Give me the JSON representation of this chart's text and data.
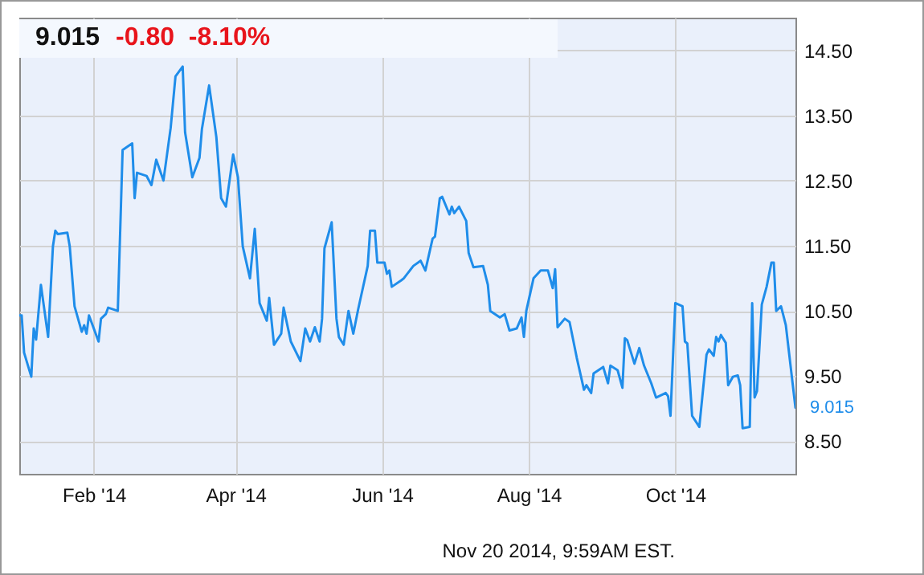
{
  "chart_data": {
    "type": "line",
    "title": "9.015",
    "subtitle": "-0.80  -8.10%",
    "x": [
      "2014-01-01",
      "2014-01-02",
      "2014-01-03",
      "2014-01-06",
      "2014-01-07",
      "2014-01-08",
      "2014-01-10",
      "2014-01-13",
      "2014-01-15",
      "2014-01-16",
      "2014-01-17",
      "2014-01-21",
      "2014-01-22",
      "2014-01-24",
      "2014-01-27",
      "2014-01-28",
      "2014-01-29",
      "2014-01-30",
      "2014-02-03",
      "2014-02-04",
      "2014-02-06",
      "2014-02-07",
      "2014-02-11",
      "2014-02-13",
      "2014-02-17",
      "2014-02-18",
      "2014-02-19",
      "2014-02-23",
      "2014-02-25",
      "2014-02-27",
      "2014-03-02",
      "2014-03-05",
      "2014-03-07",
      "2014-03-10",
      "2014-03-11",
      "2014-03-14",
      "2014-03-17",
      "2014-03-18",
      "2014-03-21",
      "2014-03-24",
      "2014-03-26",
      "2014-03-28",
      "2014-03-31",
      "2014-04-02",
      "2014-04-04",
      "2014-04-07",
      "2014-04-09",
      "2014-04-11",
      "2014-04-14",
      "2014-04-15",
      "2014-04-17",
      "2014-04-20",
      "2014-04-21",
      "2014-04-24",
      "2014-04-28",
      "2014-04-30",
      "2014-05-02",
      "2014-05-04",
      "2014-05-06",
      "2014-05-07",
      "2014-05-08",
      "2014-05-11",
      "2014-05-13",
      "2014-05-14",
      "2014-05-16",
      "2014-05-18",
      "2014-05-20",
      "2014-05-22",
      "2014-05-26",
      "2014-05-27",
      "2014-05-29",
      "2014-05-30",
      "2014-06-02",
      "2014-06-03",
      "2014-06-04",
      "2014-06-05",
      "2014-06-09",
      "2014-06-10",
      "2014-06-14",
      "2014-06-17",
      "2014-06-19",
      "2014-06-22",
      "2014-06-23",
      "2014-06-25",
      "2014-06-26",
      "2014-06-29",
      "2014-06-30",
      "2014-07-01",
      "2014-07-03",
      "2014-07-06",
      "2014-07-07",
      "2014-07-09",
      "2014-07-13",
      "2014-07-15",
      "2014-07-16",
      "2014-07-20",
      "2014-07-22",
      "2014-07-24",
      "2014-07-27",
      "2014-07-29",
      "2014-07-30",
      "2014-07-31",
      "2014-08-03",
      "2014-08-06",
      "2014-08-09",
      "2014-08-11",
      "2014-08-12",
      "2014-08-13",
      "2014-08-16",
      "2014-08-18",
      "2014-08-21",
      "2014-08-24",
      "2014-08-25",
      "2014-08-27",
      "2014-08-28",
      "2014-09-01",
      "2014-09-03",
      "2014-09-04",
      "2014-09-07",
      "2014-09-09",
      "2014-09-10",
      "2014-09-11",
      "2014-09-14",
      "2014-09-16",
      "2014-09-18",
      "2014-09-21",
      "2014-09-23",
      "2014-09-27",
      "2014-09-28",
      "2014-09-29",
      "2014-10-01",
      "2014-10-04",
      "2014-10-05",
      "2014-10-06",
      "2014-10-08",
      "2014-10-11",
      "2014-10-14",
      "2014-10-15",
      "2014-10-17",
      "2014-10-18",
      "2014-10-19",
      "2014-10-20",
      "2014-10-22",
      "2014-10-23",
      "2014-10-25",
      "2014-10-27",
      "2014-10-28",
      "2014-10-29",
      "2014-11-01",
      "2014-11-02",
      "2014-11-03",
      "2014-11-04",
      "2014-11-06",
      "2014-11-08",
      "2014-11-10",
      "2014-11-11",
      "2014-11-12",
      "2014-11-14",
      "2014-11-16",
      "2014-11-20"
    ],
    "values": [
      10.43,
      10.43,
      9.86,
      9.49,
      10.23,
      10.06,
      10.9,
      10.1,
      11.49,
      11.73,
      11.68,
      11.7,
      11.49,
      10.57,
      10.18,
      10.28,
      10.15,
      10.43,
      10.03,
      10.38,
      10.45,
      10.55,
      10.5,
      12.97,
      13.07,
      12.23,
      12.62,
      12.57,
      12.43,
      12.82,
      12.5,
      13.31,
      14.1,
      14.25,
      13.24,
      12.55,
      12.85,
      13.29,
      13.96,
      13.17,
      12.23,
      12.1,
      12.9,
      12.55,
      11.49,
      11.0,
      11.76,
      10.62,
      10.35,
      10.7,
      9.98,
      10.15,
      10.55,
      10.03,
      9.73,
      10.23,
      10.03,
      10.25,
      10.03,
      10.38,
      11.46,
      11.86,
      10.38,
      10.1,
      9.98,
      10.5,
      10.15,
      10.52,
      11.19,
      11.73,
      11.73,
      11.24,
      11.24,
      11.07,
      11.12,
      10.87,
      10.97,
      11.0,
      11.19,
      11.27,
      11.12,
      11.61,
      11.64,
      12.23,
      12.25,
      11.98,
      12.1,
      12.0,
      12.1,
      11.88,
      11.39,
      11.17,
      11.19,
      10.9,
      10.5,
      10.4,
      10.45,
      10.2,
      10.23,
      10.4,
      10.1,
      10.5,
      11.0,
      11.12,
      11.12,
      10.85,
      11.14,
      10.25,
      10.38,
      10.33,
      9.78,
      9.29,
      9.36,
      9.24,
      9.54,
      9.64,
      9.39,
      9.66,
      9.59,
      9.32,
      10.08,
      10.05,
      9.69,
      9.93,
      9.66,
      9.39,
      9.17,
      9.24,
      9.19,
      8.89,
      10.62,
      10.57,
      10.03,
      10.0,
      8.89,
      8.72,
      9.83,
      9.91,
      9.81,
      10.1,
      10.03,
      10.13,
      10.01,
      9.36,
      9.49,
      9.51,
      9.36,
      8.7,
      8.72,
      10.62,
      9.17,
      9.27,
      10.6,
      10.87,
      11.24,
      11.24,
      10.5,
      10.57,
      10.28,
      9.015
    ],
    "color": "#1f8dea",
    "xlim": [
      "2014-01-01",
      "2014-11-20"
    ],
    "xticks": [
      {
        "value": "2014-02-01",
        "label": "Feb '14"
      },
      {
        "value": "2014-04-01",
        "label": "Apr '14"
      },
      {
        "value": "2014-06-01",
        "label": "Jun '14"
      },
      {
        "value": "2014-08-01",
        "label": "Aug '14"
      },
      {
        "value": "2014-10-01",
        "label": "Oct '14"
      }
    ],
    "ylim": [
      8,
      15
    ],
    "yticks": [
      {
        "value": 8.5,
        "label": "8.50"
      },
      {
        "value": 9.5,
        "label": "9.50"
      },
      {
        "value": 10.5,
        "label": "10.50"
      },
      {
        "value": 11.5,
        "label": "11.50"
      },
      {
        "value": 12.5,
        "label": "12.50"
      },
      {
        "value": 13.5,
        "label": "13.50"
      },
      {
        "value": 14.5,
        "label": "14.50"
      }
    ],
    "grid": true,
    "annotations": [
      {
        "text": "9.015",
        "x": "2014-11-20",
        "y": 9.015
      },
      "Nov 20 2014, 9:59AM EST."
    ]
  }
}
